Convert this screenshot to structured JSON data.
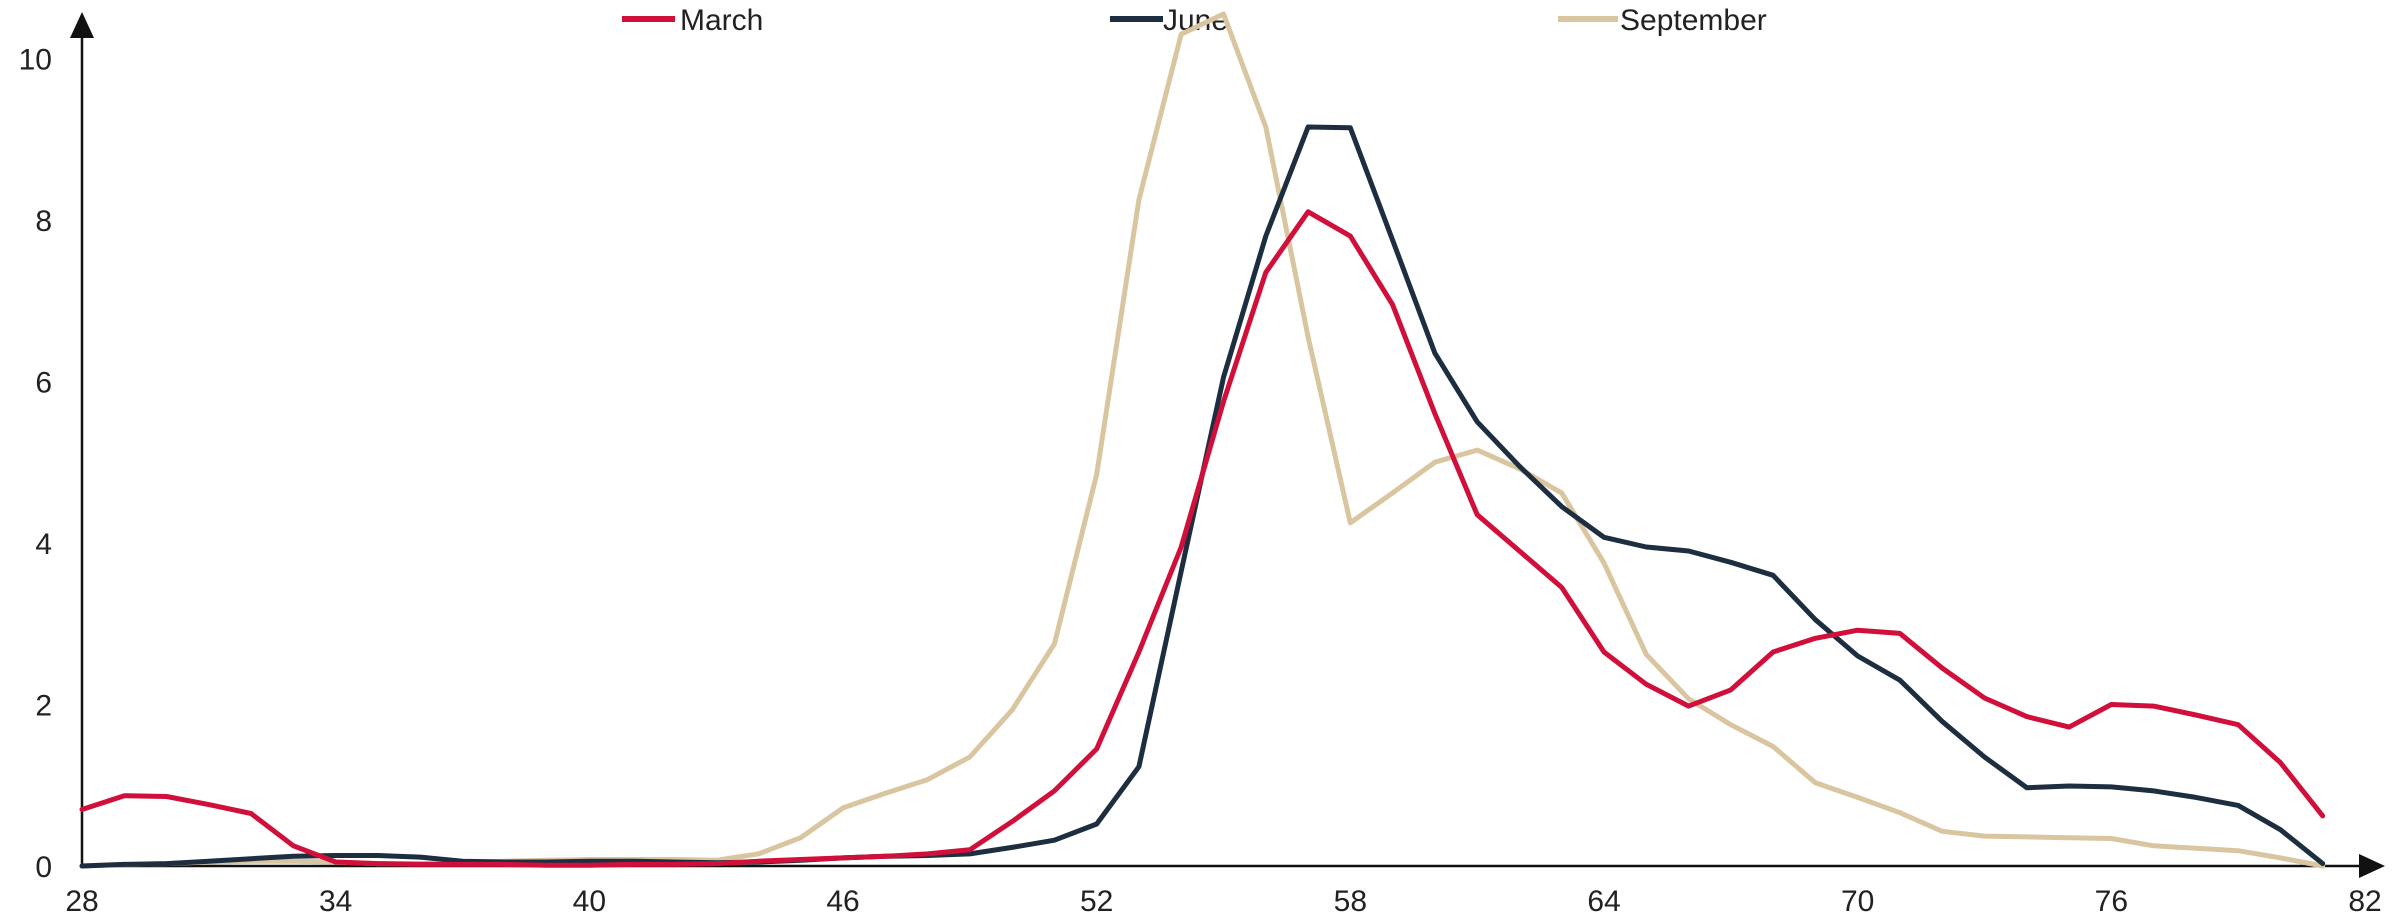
{
  "chart_data": {
    "type": "line",
    "title": "",
    "xlabel": "",
    "ylabel": "",
    "xlim": [
      28,
      82
    ],
    "ylim": [
      0,
      10.5
    ],
    "x_ticks": [
      28,
      34,
      40,
      46,
      52,
      58,
      64,
      70,
      76,
      82
    ],
    "y_ticks": [
      0,
      2,
      4,
      6,
      8,
      10
    ],
    "x_tick_labels": [
      "28",
      "34",
      "40",
      "46",
      "52",
      "58",
      "64",
      "70",
      "76",
      "82"
    ],
    "y_tick_labels": [
      "0",
      "2",
      "4",
      "6",
      "8",
      "10"
    ],
    "grid": false,
    "legend_position": "top",
    "x": [
      28,
      29,
      30,
      31,
      32,
      33,
      34,
      35,
      36,
      37,
      38,
      39,
      40,
      41,
      42,
      43,
      44,
      45,
      46,
      47,
      48,
      49,
      50,
      51,
      52,
      53,
      54,
      55,
      56,
      57,
      58,
      59,
      60,
      61,
      62,
      63,
      64,
      65,
      66,
      67,
      68,
      69,
      70,
      71,
      72,
      73,
      74,
      75,
      76,
      77,
      78,
      79,
      80,
      81
    ],
    "series": [
      {
        "name": "March",
        "color": "#d0103a",
        "values": [
          0.7,
          0.87,
          0.86,
          0.76,
          0.65,
          0.25,
          0.05,
          0.03,
          0.02,
          0.02,
          0.02,
          0.01,
          0.01,
          0.02,
          0.02,
          0.03,
          0.06,
          0.08,
          0.1,
          0.12,
          0.15,
          0.2,
          0.55,
          0.93,
          1.45,
          2.65,
          3.95,
          5.75,
          7.35,
          8.1,
          7.8,
          6.95,
          5.6,
          4.35,
          3.9,
          3.45,
          2.65,
          2.25,
          1.98,
          2.18,
          2.65,
          2.82,
          2.92,
          2.88,
          2.45,
          2.08,
          1.85,
          1.72,
          2.0,
          1.98,
          1.87,
          1.75,
          1.28,
          0.62
        ]
      },
      {
        "name": "June",
        "color": "#1c2e40",
        "values": [
          0.0,
          0.02,
          0.03,
          0.06,
          0.09,
          0.12,
          0.13,
          0.13,
          0.11,
          0.06,
          0.05,
          0.05,
          0.06,
          0.06,
          0.05,
          0.04,
          0.05,
          0.07,
          0.1,
          0.12,
          0.13,
          0.15,
          0.23,
          0.32,
          0.52,
          1.23,
          3.65,
          6.05,
          7.8,
          9.15,
          9.14,
          7.75,
          6.35,
          5.5,
          4.95,
          4.45,
          4.07,
          3.95,
          3.9,
          3.76,
          3.6,
          3.05,
          2.6,
          2.3,
          1.79,
          1.35,
          0.97,
          0.99,
          0.98,
          0.93,
          0.85,
          0.75,
          0.45,
          0.03
        ]
      },
      {
        "name": "September",
        "color": "#d9c5a0",
        "values": [
          0.0,
          0.02,
          0.03,
          0.05,
          0.06,
          0.06,
          0.05,
          0.03,
          0.03,
          0.04,
          0.06,
          0.07,
          0.08,
          0.08,
          0.08,
          0.07,
          0.15,
          0.35,
          0.72,
          0.9,
          1.07,
          1.35,
          1.93,
          2.75,
          4.85,
          8.25,
          10.3,
          10.55,
          9.15,
          6.55,
          4.25,
          4.62,
          5.0,
          5.15,
          4.92,
          4.62,
          3.75,
          2.62,
          2.07,
          1.75,
          1.48,
          1.03,
          0.85,
          0.66,
          0.43,
          0.37,
          0.36,
          0.35,
          0.34,
          0.25,
          0.22,
          0.19,
          0.1,
          0.0
        ]
      }
    ]
  }
}
